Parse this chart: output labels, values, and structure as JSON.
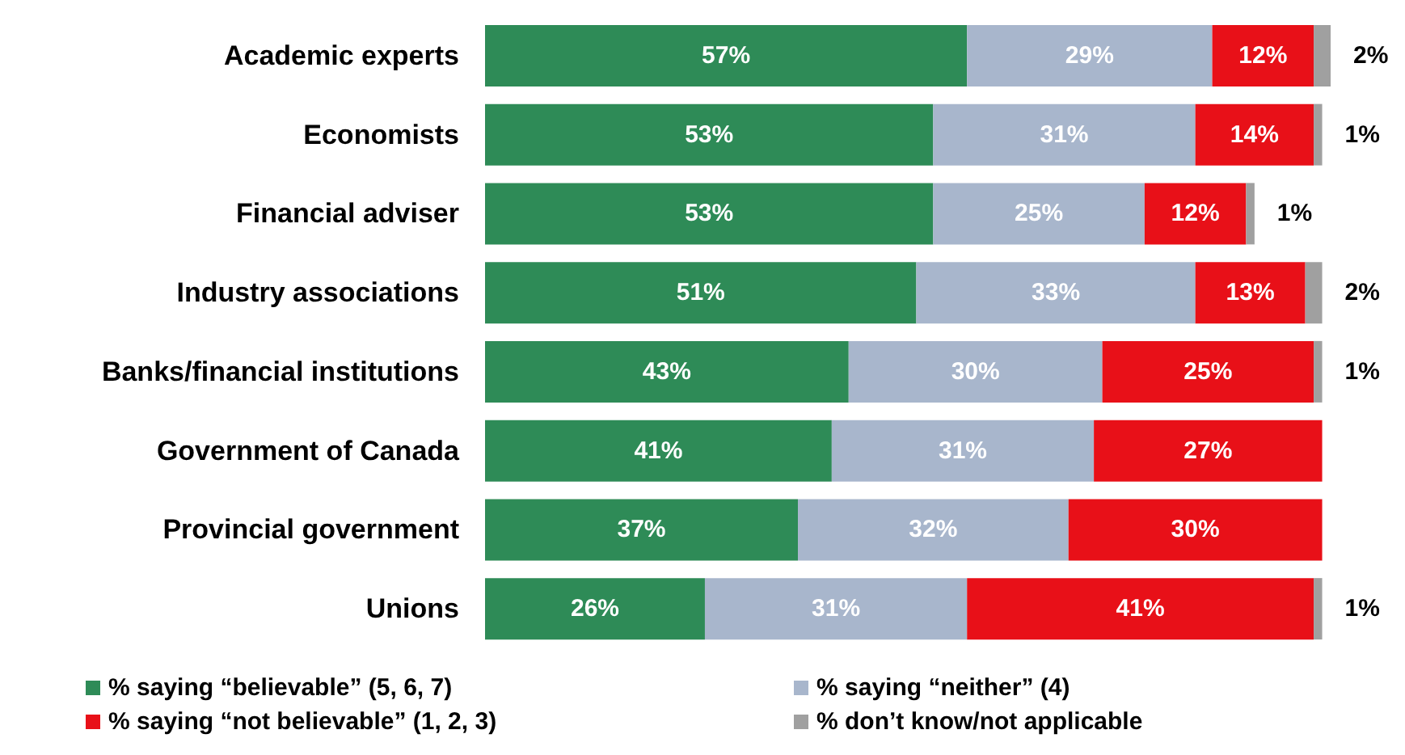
{
  "chart_data": {
    "type": "bar",
    "orientation": "horizontal",
    "stacked": true,
    "legend": "bottom",
    "tick_labels": "y",
    "categories": [
      "Academic experts",
      "Economists",
      "Financial adviser",
      "Industry associations",
      "Banks/financial institutions",
      "Government of Canada",
      "Provincial government",
      "Unions"
    ],
    "series": [
      {
        "name": "% saying “believable” (5, 6, 7)",
        "color": "#2e8b57",
        "values": [
          57,
          53,
          53,
          51,
          43,
          41,
          37,
          26
        ],
        "value_labels": [
          "57%",
          "53%",
          "53%",
          "51%",
          "43%",
          "41%",
          "37%",
          "26%"
        ]
      },
      {
        "name": "% saying “neither” (4)",
        "color": "#a8b6cc",
        "values": [
          29,
          31,
          25,
          33,
          30,
          31,
          32,
          31
        ],
        "value_labels": [
          "29%",
          "31%",
          "25%",
          "33%",
          "30%",
          "31%",
          "32%",
          "31%"
        ]
      },
      {
        "name": "% saying “not believable” (1, 2, 3)",
        "color": "#e81018",
        "values": [
          12,
          14,
          12,
          13,
          25,
          27,
          30,
          41
        ],
        "value_labels": [
          "12%",
          "14%",
          "12%",
          "13%",
          "25%",
          "27%",
          "30%",
          "41%"
        ]
      },
      {
        "name": "% don’t know/not applicable",
        "color": "#a0a0a0",
        "values": [
          2,
          1,
          1,
          2,
          1,
          null,
          null,
          1
        ],
        "value_labels": [
          "2%",
          "1%",
          "1%",
          "2%",
          "1%",
          null,
          null,
          "1%"
        ]
      }
    ]
  }
}
